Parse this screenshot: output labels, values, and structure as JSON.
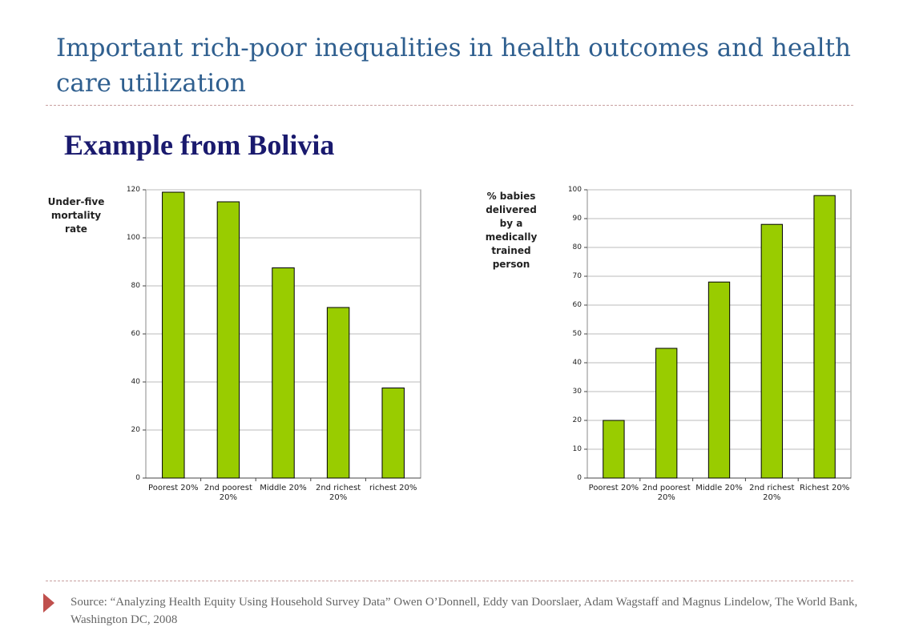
{
  "title": "Important rich-poor inequalities in health outcomes and health care utilization",
  "subtitle": "Example from Bolivia",
  "source": "Source: “Analyzing Health Equity Using Household Survey Data” Owen O’Donnell, Eddy van Doorslaer, Adam Wagstaff and Magnus Lindelow, The World Bank, Washington DC, 2008",
  "chart_data": [
    {
      "type": "bar",
      "ylabel": "Under-five mortality rate",
      "categories": [
        "Poorest 20%",
        "2nd poorest 20%",
        "Middle 20%",
        "2nd richest 20%",
        "richest 20%"
      ],
      "values": [
        119,
        115,
        87.5,
        71,
        37.5
      ],
      "color": "#99cc00",
      "ylim": [
        0,
        120
      ],
      "yticks": [
        0,
        20,
        40,
        60,
        80,
        100,
        120
      ],
      "grid": true
    },
    {
      "type": "bar",
      "ylabel": "% babies delivered by a medically trained person",
      "categories": [
        "Poorest 20%",
        "2nd poorest 20%",
        "Middle 20%",
        "2nd richest 20%",
        "Richest 20%"
      ],
      "values": [
        20,
        45,
        68,
        88,
        98
      ],
      "color": "#99cc00",
      "ylim": [
        0,
        100
      ],
      "yticks": [
        0,
        10,
        20,
        30,
        40,
        50,
        60,
        70,
        80,
        90,
        100
      ],
      "grid": true
    }
  ]
}
